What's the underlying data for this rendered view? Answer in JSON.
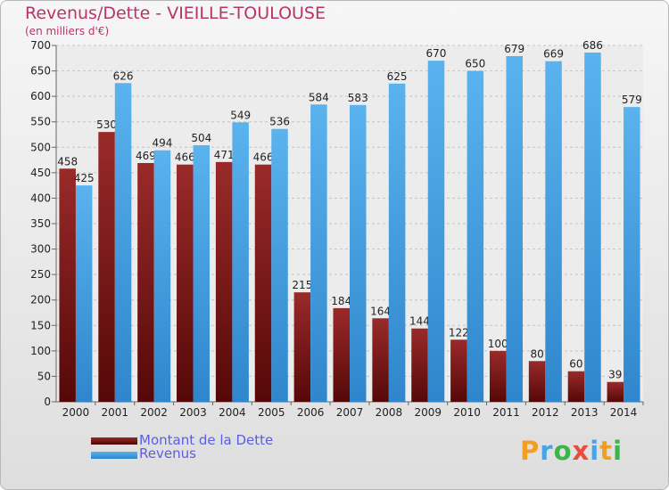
{
  "chart_data": {
    "type": "bar",
    "title": "Revenus/Dette - VIEILLE-TOULOUSE",
    "subtitle": "(en milliers d'€)",
    "categories": [
      "2000",
      "2001",
      "2002",
      "2003",
      "2004",
      "2005",
      "2006",
      "2007",
      "2008",
      "2009",
      "2010",
      "2011",
      "2012",
      "2013",
      "2014"
    ],
    "series": [
      {
        "name": "Montant de la Dette",
        "color": "#7a1818",
        "values": [
          458,
          530,
          469,
          466,
          471,
          466,
          215,
          184,
          164,
          144,
          122,
          100,
          80,
          60,
          39
        ]
      },
      {
        "name": "Revenus",
        "color": "#4aa3e6",
        "values": [
          425,
          626,
          494,
          504,
          549,
          536,
          584,
          583,
          625,
          670,
          650,
          679,
          669,
          686,
          579
        ]
      }
    ],
    "ylim": [
      0,
      700
    ],
    "yticks": [
      0,
      50,
      100,
      150,
      200,
      250,
      300,
      350,
      400,
      450,
      500,
      550,
      600,
      650,
      700
    ],
    "grid": true,
    "legend": "bottom-left"
  },
  "logo": {
    "text": "Proxiti",
    "letters": [
      "P",
      "r",
      "o",
      "x",
      "i",
      "t",
      "i"
    ],
    "colors": [
      "#f0a020",
      "#4aa3e6",
      "#3cb44a",
      "#e84c3d",
      "#4aa3e6",
      "#f0a020",
      "#3cb44a"
    ]
  }
}
